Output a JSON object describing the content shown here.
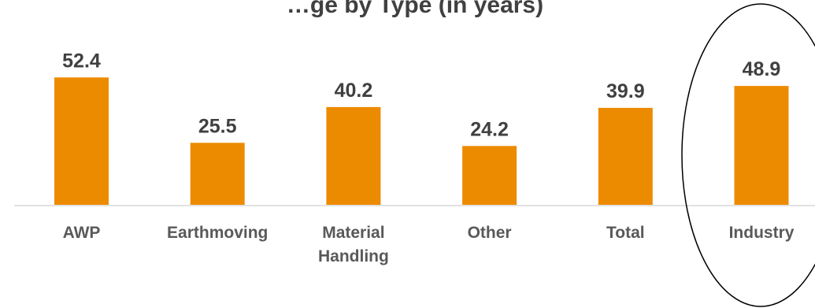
{
  "chart_data": {
    "type": "bar",
    "title": "…ge by Type (in years)",
    "categories": [
      [
        "AWP"
      ],
      [
        "Earthmoving"
      ],
      [
        "Material",
        "Handling"
      ],
      [
        "Other"
      ],
      [
        "Total"
      ],
      [
        "Industry"
      ]
    ],
    "values": [
      52.4,
      25.5,
      40.2,
      24.2,
      39.9,
      48.9
    ],
    "value_labels": [
      "52.4",
      "25.5",
      "40.2",
      "24.2",
      "39.9",
      "48.9"
    ],
    "xlabel": "",
    "ylabel": "",
    "ylim": [
      0,
      60
    ],
    "grid": false,
    "legend": "none",
    "highlighted_category": "Industry",
    "colors": {
      "bar": "#ED8B00",
      "axis": "#D9D9D9",
      "text": "#595959",
      "value_text": "#404040",
      "highlight": "#000000"
    }
  }
}
